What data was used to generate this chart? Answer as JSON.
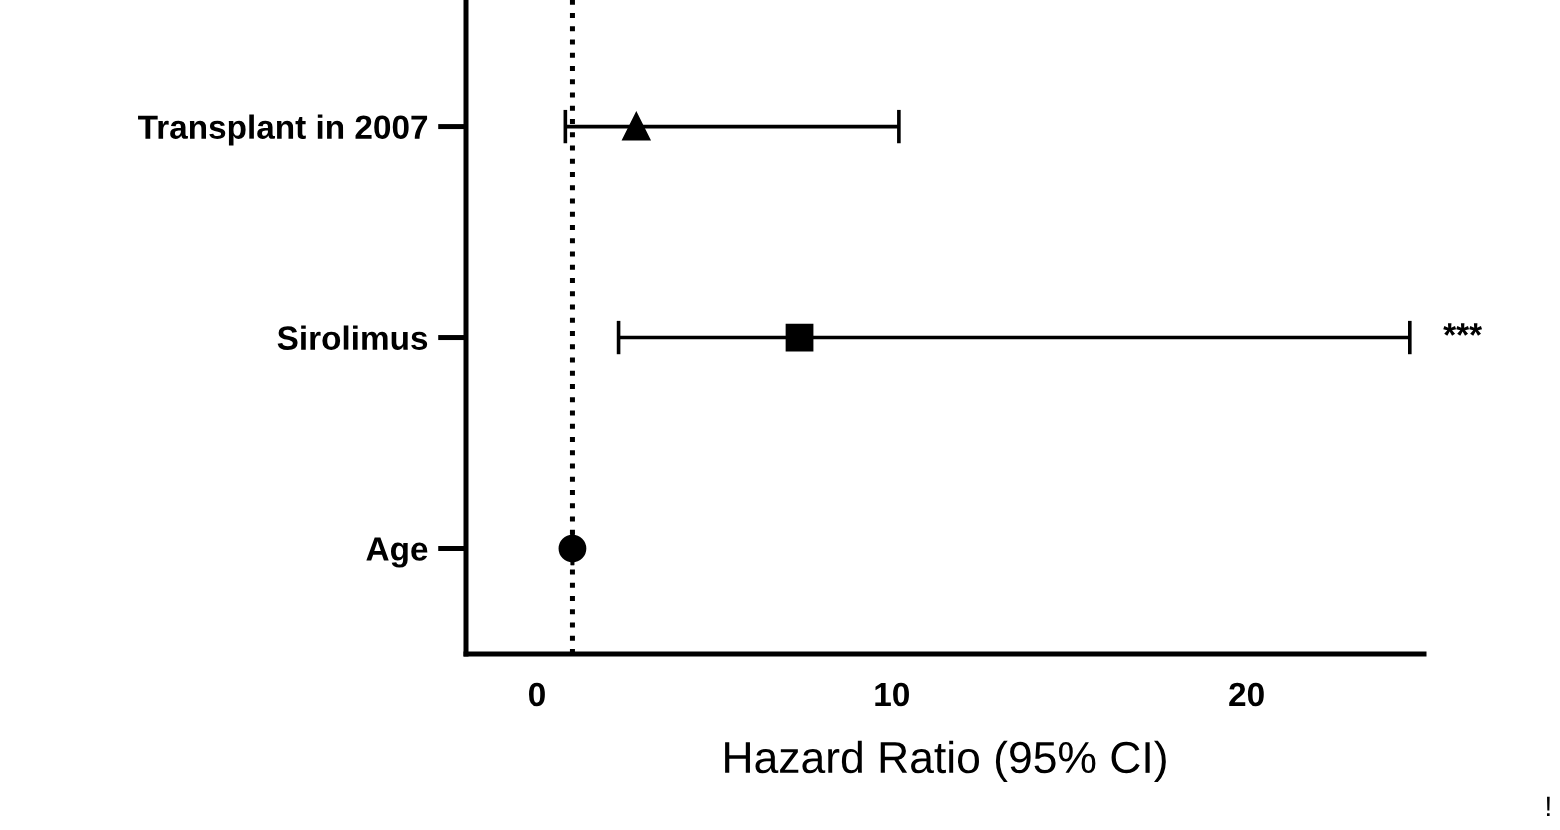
{
  "chart_data": {
    "type": "scatter",
    "orientation": "horizontal",
    "xlabel": "Hazard Ratio (95% CI)",
    "categories": [
      "Transplant in 2007",
      "Sirolimus",
      "Age"
    ],
    "series": [
      {
        "color": "#000000",
        "marker": "triangle",
        "values": [
          2.8,
          null,
          null
        ],
        "errors": [
          [
            0.8,
            10.2
          ],
          null,
          null
        ]
      },
      {
        "color": "#000000",
        "marker": "square",
        "values": [
          null,
          7.4,
          null
        ],
        "errors": [
          null,
          [
            2.3,
            24.6
          ],
          null
        ]
      },
      {
        "color": "#000000",
        "marker": "circle",
        "values": [
          null,
          null,
          1.0
        ],
        "errors": [
          null,
          null,
          null
        ]
      }
    ],
    "xlim": [
      -2,
      25
    ],
    "xticks": [
      0,
      10,
      20
    ],
    "grid": false,
    "legend": false,
    "ref_lines": [
      {
        "axis": "x",
        "value": 1,
        "line_style": "dotted",
        "color": "#000000"
      }
    ],
    "annotations": [
      "***",
      "!"
    ]
  }
}
